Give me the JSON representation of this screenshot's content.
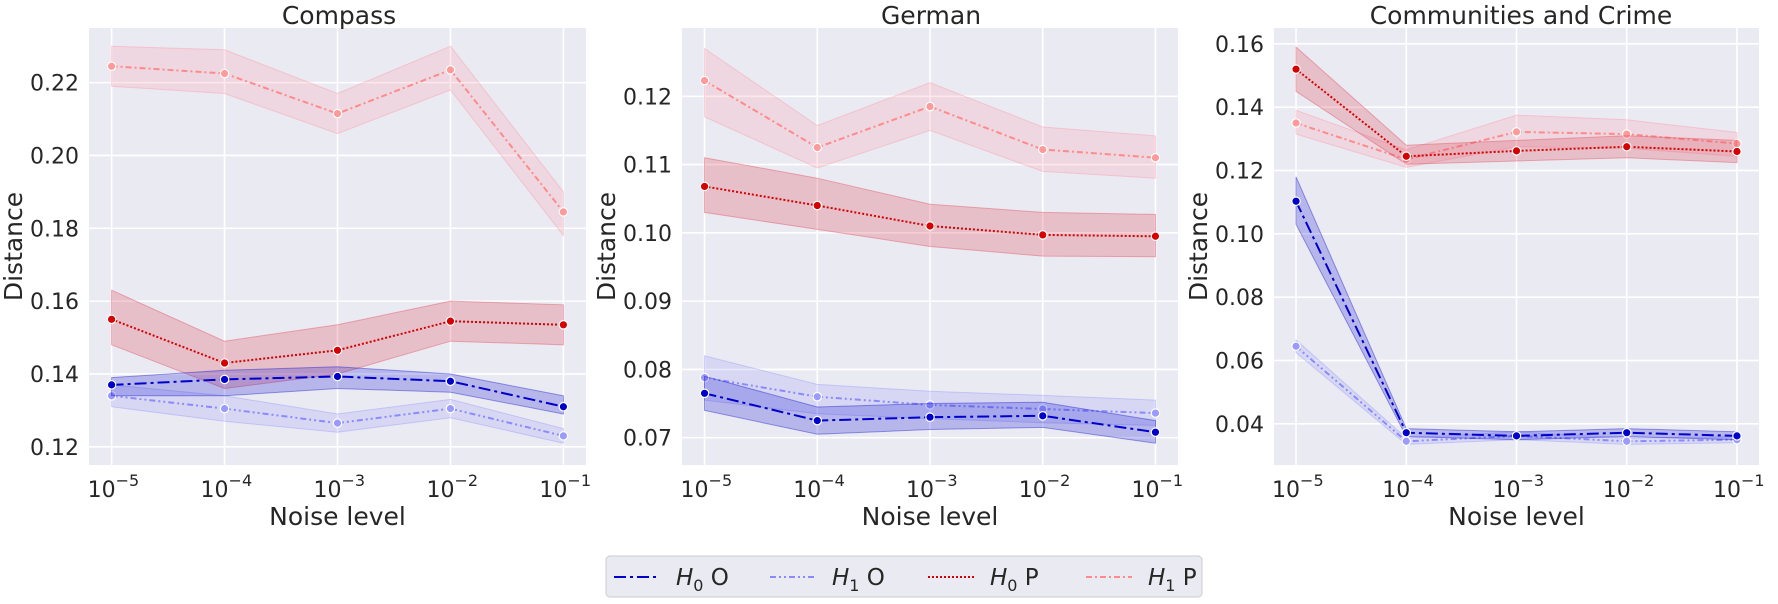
{
  "chart_data": [
    {
      "type": "line",
      "title": "Compass",
      "xlabel": "Noise level",
      "ylabel": "Distance",
      "x": [
        1e-05,
        0.0001,
        0.001,
        0.01,
        0.1
      ],
      "x_tick_labels": [
        {
          "base": "10",
          "exp": "−5"
        },
        {
          "base": "10",
          "exp": "−4"
        },
        {
          "base": "10",
          "exp": "−3"
        },
        {
          "base": "10",
          "exp": "−2"
        },
        {
          "base": "10",
          "exp": "−1"
        }
      ],
      "xscale": "log",
      "ylim": [
        0.115,
        0.235
      ],
      "yticks": [
        0.12,
        0.14,
        0.16,
        0.18,
        0.2,
        0.22
      ],
      "ytick_labels": [
        "0.12",
        "0.14",
        "0.16",
        "0.18",
        "0.20",
        "0.22"
      ],
      "grid": true,
      "series": [
        {
          "key": "h0o",
          "values": [
            0.137,
            0.1385,
            0.1393,
            0.138,
            0.131
          ],
          "band_low": [
            0.134,
            0.134,
            0.136,
            0.135,
            0.129
          ],
          "band_high": [
            0.139,
            0.141,
            0.142,
            0.14,
            0.134
          ]
        },
        {
          "key": "h1o",
          "values": [
            0.134,
            0.1305,
            0.1265,
            0.1305,
            0.123
          ],
          "band_low": [
            0.131,
            0.127,
            0.124,
            0.128,
            0.121
          ],
          "band_high": [
            0.137,
            0.134,
            0.129,
            0.133,
            0.125
          ]
        },
        {
          "key": "h0p",
          "values": [
            0.155,
            0.143,
            0.1465,
            0.1545,
            0.1535
          ],
          "band_low": [
            0.148,
            0.136,
            0.14,
            0.149,
            0.148
          ],
          "band_high": [
            0.163,
            0.149,
            0.1535,
            0.16,
            0.159
          ]
        },
        {
          "key": "h1p",
          "values": [
            0.2245,
            0.2225,
            0.2115,
            0.2235,
            0.1845
          ],
          "band_low": [
            0.219,
            0.217,
            0.206,
            0.218,
            0.178
          ],
          "band_high": [
            0.23,
            0.229,
            0.217,
            0.23,
            0.19
          ]
        }
      ]
    },
    {
      "type": "line",
      "title": "German",
      "xlabel": "Noise level",
      "ylabel": "Distance",
      "x": [
        1e-05,
        0.0001,
        0.001,
        0.01,
        0.1
      ],
      "x_tick_labels": [
        {
          "base": "10",
          "exp": "−5"
        },
        {
          "base": "10",
          "exp": "−4"
        },
        {
          "base": "10",
          "exp": "−3"
        },
        {
          "base": "10",
          "exp": "−2"
        },
        {
          "base": "10",
          "exp": "−1"
        }
      ],
      "xscale": "log",
      "ylim": [
        0.066,
        0.13
      ],
      "yticks": [
        0.07,
        0.08,
        0.09,
        0.1,
        0.11,
        0.12
      ],
      "ytick_labels": [
        "0.07",
        "0.08",
        "0.09",
        "0.10",
        "0.11",
        "0.12"
      ],
      "grid": true,
      "series": [
        {
          "key": "h0o",
          "values": [
            0.0765,
            0.0725,
            0.073,
            0.0732,
            0.0708
          ],
          "band_low": [
            0.074,
            0.0705,
            0.0712,
            0.0715,
            0.0692
          ],
          "band_high": [
            0.079,
            0.0745,
            0.075,
            0.0752,
            0.0725
          ]
        },
        {
          "key": "h1o",
          "values": [
            0.0788,
            0.076,
            0.0748,
            0.0742,
            0.0736
          ],
          "band_low": [
            0.0755,
            0.0735,
            0.0728,
            0.0722,
            0.0718
          ],
          "band_high": [
            0.082,
            0.0778,
            0.0768,
            0.0762,
            0.0755
          ]
        },
        {
          "key": "h0p",
          "values": [
            0.1068,
            0.104,
            0.101,
            0.0997,
            0.0995
          ],
          "band_low": [
            0.103,
            0.1005,
            0.098,
            0.0966,
            0.0965
          ],
          "band_high": [
            0.111,
            0.108,
            0.1042,
            0.103,
            0.1027
          ]
        },
        {
          "key": "h1p",
          "values": [
            0.1223,
            0.1125,
            0.1185,
            0.1122,
            0.111
          ],
          "band_low": [
            0.117,
            0.1095,
            0.115,
            0.109,
            0.108
          ],
          "band_high": [
            0.127,
            0.1157,
            0.122,
            0.1155,
            0.1142
          ]
        }
      ]
    },
    {
      "type": "line",
      "title": "Communities and Crime",
      "xlabel": "Noise level",
      "ylabel": "Distance",
      "x": [
        1e-05,
        0.0001,
        0.001,
        0.01,
        0.1
      ],
      "x_tick_labels": [
        {
          "base": "10",
          "exp": "−5"
        },
        {
          "base": "10",
          "exp": "−4"
        },
        {
          "base": "10",
          "exp": "−3"
        },
        {
          "base": "10",
          "exp": "−2"
        },
        {
          "base": "10",
          "exp": "−1"
        }
      ],
      "xscale": "log",
      "ylim": [
        0.027,
        0.165
      ],
      "yticks": [
        0.04,
        0.06,
        0.08,
        0.1,
        0.12,
        0.14,
        0.16
      ],
      "ytick_labels": [
        "0.04",
        "0.06",
        "0.08",
        "0.10",
        "0.12",
        "0.14",
        "0.16"
      ],
      "grid": true,
      "series": [
        {
          "key": "h0o",
          "values": [
            0.1103,
            0.0372,
            0.0362,
            0.0372,
            0.0362
          ],
          "band_low": [
            0.103,
            0.036,
            0.035,
            0.036,
            0.035
          ],
          "band_high": [
            0.118,
            0.0385,
            0.0375,
            0.0385,
            0.0375
          ]
        },
        {
          "key": "h1o",
          "values": [
            0.0645,
            0.0345,
            0.0362,
            0.0345,
            0.035
          ],
          "band_low": [
            0.0625,
            0.0335,
            0.035,
            0.0335,
            0.034
          ],
          "band_high": [
            0.0665,
            0.0355,
            0.0375,
            0.0355,
            0.036
          ]
        },
        {
          "key": "h0p",
          "values": [
            0.152,
            0.1245,
            0.1262,
            0.1275,
            0.126
          ],
          "band_low": [
            0.145,
            0.122,
            0.123,
            0.124,
            0.1225
          ],
          "band_high": [
            0.159,
            0.128,
            0.1295,
            0.131,
            0.1295
          ]
        },
        {
          "key": "h1p",
          "values": [
            0.135,
            0.1235,
            0.1322,
            0.1315,
            0.1285
          ],
          "band_low": [
            0.1315,
            0.121,
            0.1275,
            0.127,
            0.1245
          ],
          "band_high": [
            0.139,
            0.1265,
            0.1375,
            0.136,
            0.132
          ]
        }
      ]
    }
  ],
  "legend": {
    "placement": "bottom-center",
    "items": [
      {
        "key": "h0o",
        "sym": "H",
        "sub": "0",
        "suffix": " O"
      },
      {
        "key": "h1o",
        "sym": "H",
        "sub": "1",
        "suffix": " O"
      },
      {
        "key": "h0p",
        "sym": "H",
        "sub": "0",
        "suffix": " P"
      },
      {
        "key": "h1p",
        "sym": "H",
        "sub": "1",
        "suffix": " P"
      }
    ]
  },
  "styles": {
    "h0o": {
      "color": "#0000cc",
      "band": "#0000cc",
      "band_opacity": 0.22,
      "dash": "12,4,3,4",
      "marker_fill": "#0000cc"
    },
    "h1o": {
      "color": "#8a8aff",
      "band": "#8a8aff",
      "band_opacity": 0.2,
      "dash": "6,3,2,3,2,3",
      "marker_fill": "#9a9aff"
    },
    "h0p": {
      "color": "#d60000",
      "band": "#e05060",
      "band_opacity": 0.28,
      "dash": "2,2",
      "marker_fill": "#d60000"
    },
    "h1p": {
      "color": "#ff8a8a",
      "band": "#ff8a9a",
      "band_opacity": 0.2,
      "dash": "6,3,2,3",
      "marker_fill": "#ff9a9a"
    },
    "plot_bg": "#eaeaf2",
    "grid": "#ffffff"
  }
}
